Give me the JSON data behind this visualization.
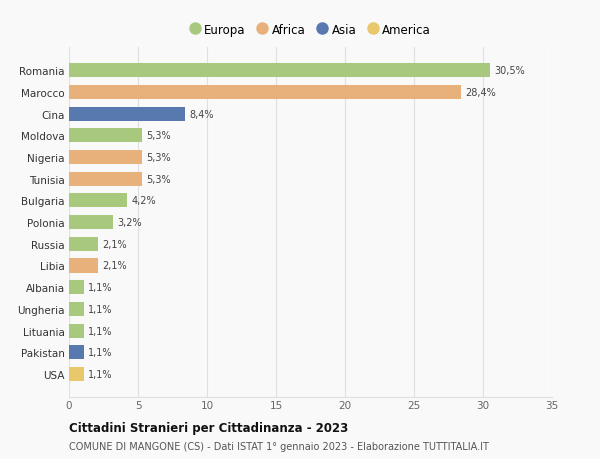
{
  "categories": [
    "Romania",
    "Marocco",
    "Cina",
    "Moldova",
    "Nigeria",
    "Tunisia",
    "Bulgaria",
    "Polonia",
    "Russia",
    "Libia",
    "Albania",
    "Ungheria",
    "Lituania",
    "Pakistan",
    "USA"
  ],
  "values": [
    30.5,
    28.4,
    8.4,
    5.3,
    5.3,
    5.3,
    4.2,
    3.2,
    2.1,
    2.1,
    1.1,
    1.1,
    1.1,
    1.1,
    1.1
  ],
  "labels": [
    "30,5%",
    "28,4%",
    "8,4%",
    "5,3%",
    "5,3%",
    "5,3%",
    "4,2%",
    "3,2%",
    "2,1%",
    "2,1%",
    "1,1%",
    "1,1%",
    "1,1%",
    "1,1%",
    "1,1%"
  ],
  "colors": [
    "#a8c87e",
    "#e8b07a",
    "#5878b0",
    "#a8c87e",
    "#e8b07a",
    "#e8b07a",
    "#a8c87e",
    "#a8c87e",
    "#a8c87e",
    "#e8b07a",
    "#a8c87e",
    "#a8c87e",
    "#a8c87e",
    "#5878b0",
    "#e8c86a"
  ],
  "legend_labels": [
    "Europa",
    "Africa",
    "Asia",
    "America"
  ],
  "legend_colors": [
    "#a8c87e",
    "#e8b07a",
    "#5878b0",
    "#e8c86a"
  ],
  "title": "Cittadini Stranieri per Cittadinanza - 2023",
  "subtitle": "COMUNE DI MANGONE (CS) - Dati ISTAT 1° gennaio 2023 - Elaborazione TUTTITALIA.IT",
  "xlim": [
    0,
    35
  ],
  "xticks": [
    0,
    5,
    10,
    15,
    20,
    25,
    30,
    35
  ],
  "bg_color": "#f9f9f9",
  "grid_color": "#e0e0e0"
}
